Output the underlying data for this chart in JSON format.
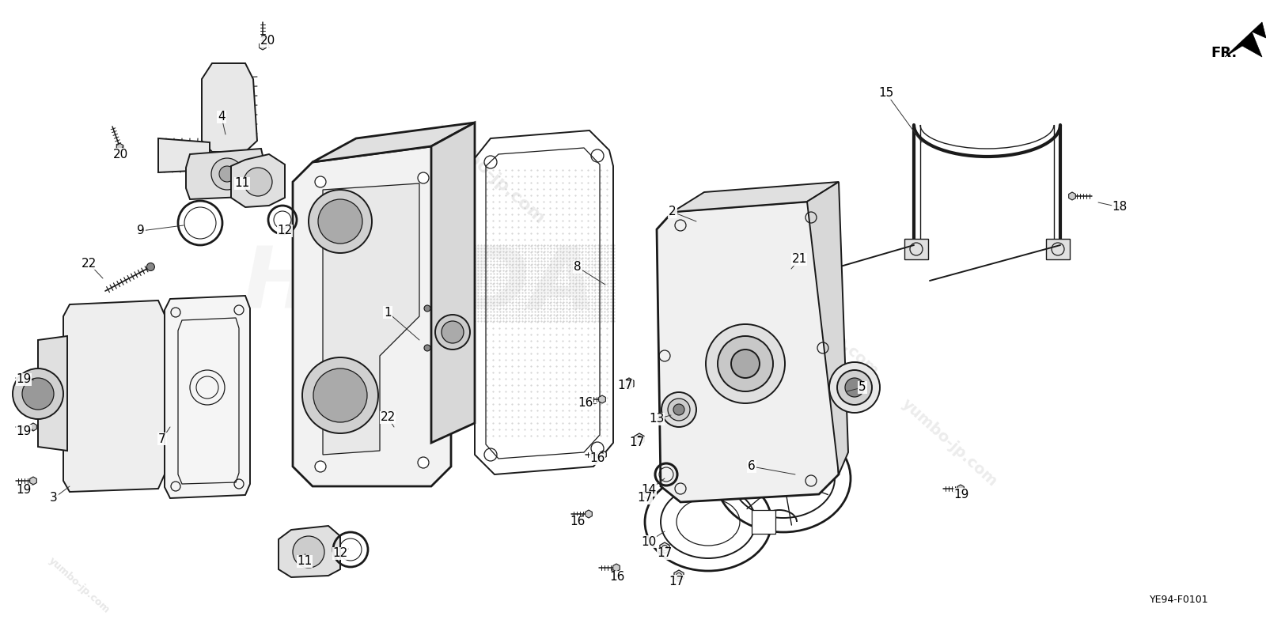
{
  "background_color": "#ffffff",
  "diagram_code": "YE94-F0101",
  "fr_label": "FR.",
  "fig_width": 16.0,
  "fig_height": 7.98,
  "label_fontsize": 11,
  "label_color": "#000000",
  "watermark_color": "#bbbbbb",
  "line_color": "#000000",
  "part_labels": [
    [
      "1",
      490,
      395
    ],
    [
      "2",
      850,
      268
    ],
    [
      "3",
      68,
      630
    ],
    [
      "4",
      280,
      148
    ],
    [
      "5",
      1090,
      490
    ],
    [
      "6",
      950,
      590
    ],
    [
      "7",
      205,
      555
    ],
    [
      "8",
      730,
      338
    ],
    [
      "9",
      178,
      292
    ],
    [
      "10",
      820,
      685
    ],
    [
      "11",
      385,
      710
    ],
    [
      "11",
      306,
      232
    ],
    [
      "12",
      430,
      700
    ],
    [
      "12",
      360,
      292
    ],
    [
      "13",
      830,
      530
    ],
    [
      "14",
      820,
      620
    ],
    [
      "15",
      1120,
      118
    ],
    [
      "16",
      740,
      510
    ],
    [
      "16",
      755,
      580
    ],
    [
      "16",
      730,
      660
    ],
    [
      "16",
      780,
      730
    ],
    [
      "17",
      790,
      488
    ],
    [
      "17",
      805,
      560
    ],
    [
      "17",
      815,
      630
    ],
    [
      "17",
      840,
      700
    ],
    [
      "17",
      855,
      735
    ],
    [
      "18",
      1415,
      262
    ],
    [
      "19",
      30,
      480
    ],
    [
      "19",
      30,
      545
    ],
    [
      "19",
      30,
      620
    ],
    [
      "19",
      1215,
      625
    ],
    [
      "20",
      338,
      52
    ],
    [
      "20",
      152,
      195
    ],
    [
      "21",
      1010,
      328
    ],
    [
      "22",
      112,
      333
    ],
    [
      "22",
      490,
      528
    ]
  ]
}
